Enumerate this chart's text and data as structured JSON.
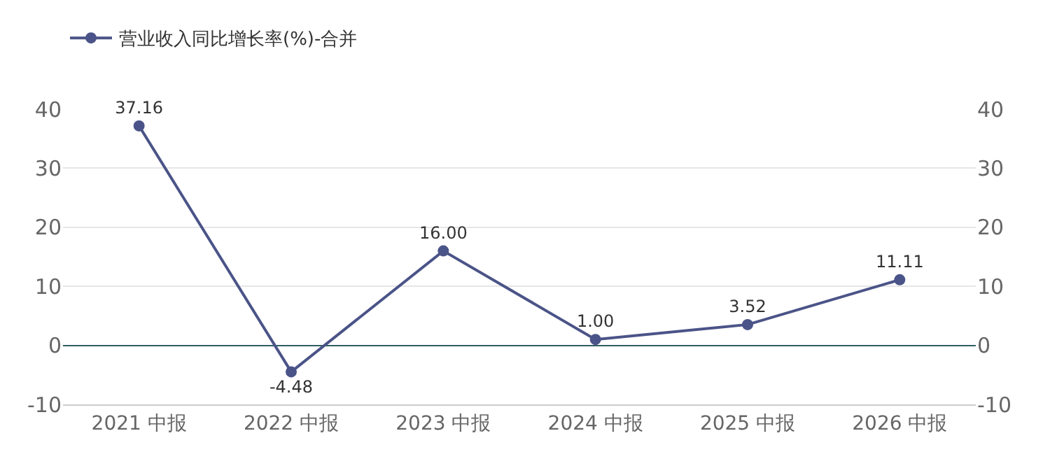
{
  "chart_data": {
    "type": "line",
    "categories": [
      "2021 中报",
      "2022 中报",
      "2023 中报",
      "2024 中报",
      "2025 中报",
      "2026 中报"
    ],
    "series": [
      {
        "name": "营业收入同比增长率(%)-合并",
        "color": "#4b5488",
        "values": [
          37.16,
          -4.48,
          16.0,
          1.0,
          3.52,
          11.11
        ],
        "value_labels": [
          "37.16",
          "-4.48",
          "16.00",
          "1.00",
          "3.52",
          "11.11"
        ]
      }
    ],
    "ylim": [
      -10,
      40
    ],
    "yticks": [
      -10,
      0,
      10,
      20,
      30,
      40
    ],
    "y2lim": [
      -10,
      40
    ],
    "y2ticks": [
      -10,
      0,
      10,
      20,
      30,
      40
    ],
    "grid": "y",
    "legend": "top left",
    "marker": "circle",
    "line_style": "solid"
  }
}
